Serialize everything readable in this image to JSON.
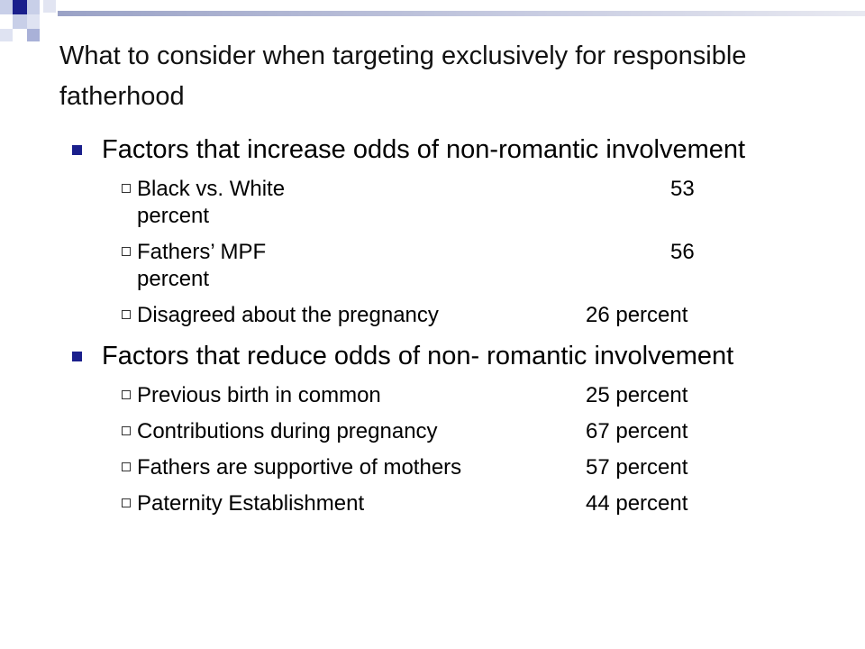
{
  "title": "What to consider when targeting exclusively for responsible fatherhood",
  "sections": [
    {
      "heading": "Factors that increase odds of non-romantic involvement",
      "items": [
        {
          "label": "Black vs. White",
          "value": "53",
          "unit": "percent"
        },
        {
          "label": "Fathers’ MPF",
          "value": "56",
          "unit": "percent"
        },
        {
          "label": "Disagreed about the pregnancy",
          "value": "26 percent"
        }
      ]
    },
    {
      "heading": "Factors that reduce odds of non- romantic involvement",
      "items": [
        {
          "label": "Previous birth in common",
          "value": "25 percent"
        },
        {
          "label": "Contributions during pregnancy",
          "value": "67 percent"
        },
        {
          "label": "Fathers are supportive of mothers",
          "value": "57 percent"
        },
        {
          "label": "Paternity Establishment",
          "value": "44 percent"
        }
      ]
    }
  ],
  "colors": {
    "accent": "#1a1f8c",
    "light_accent": "#c8cfe8"
  }
}
